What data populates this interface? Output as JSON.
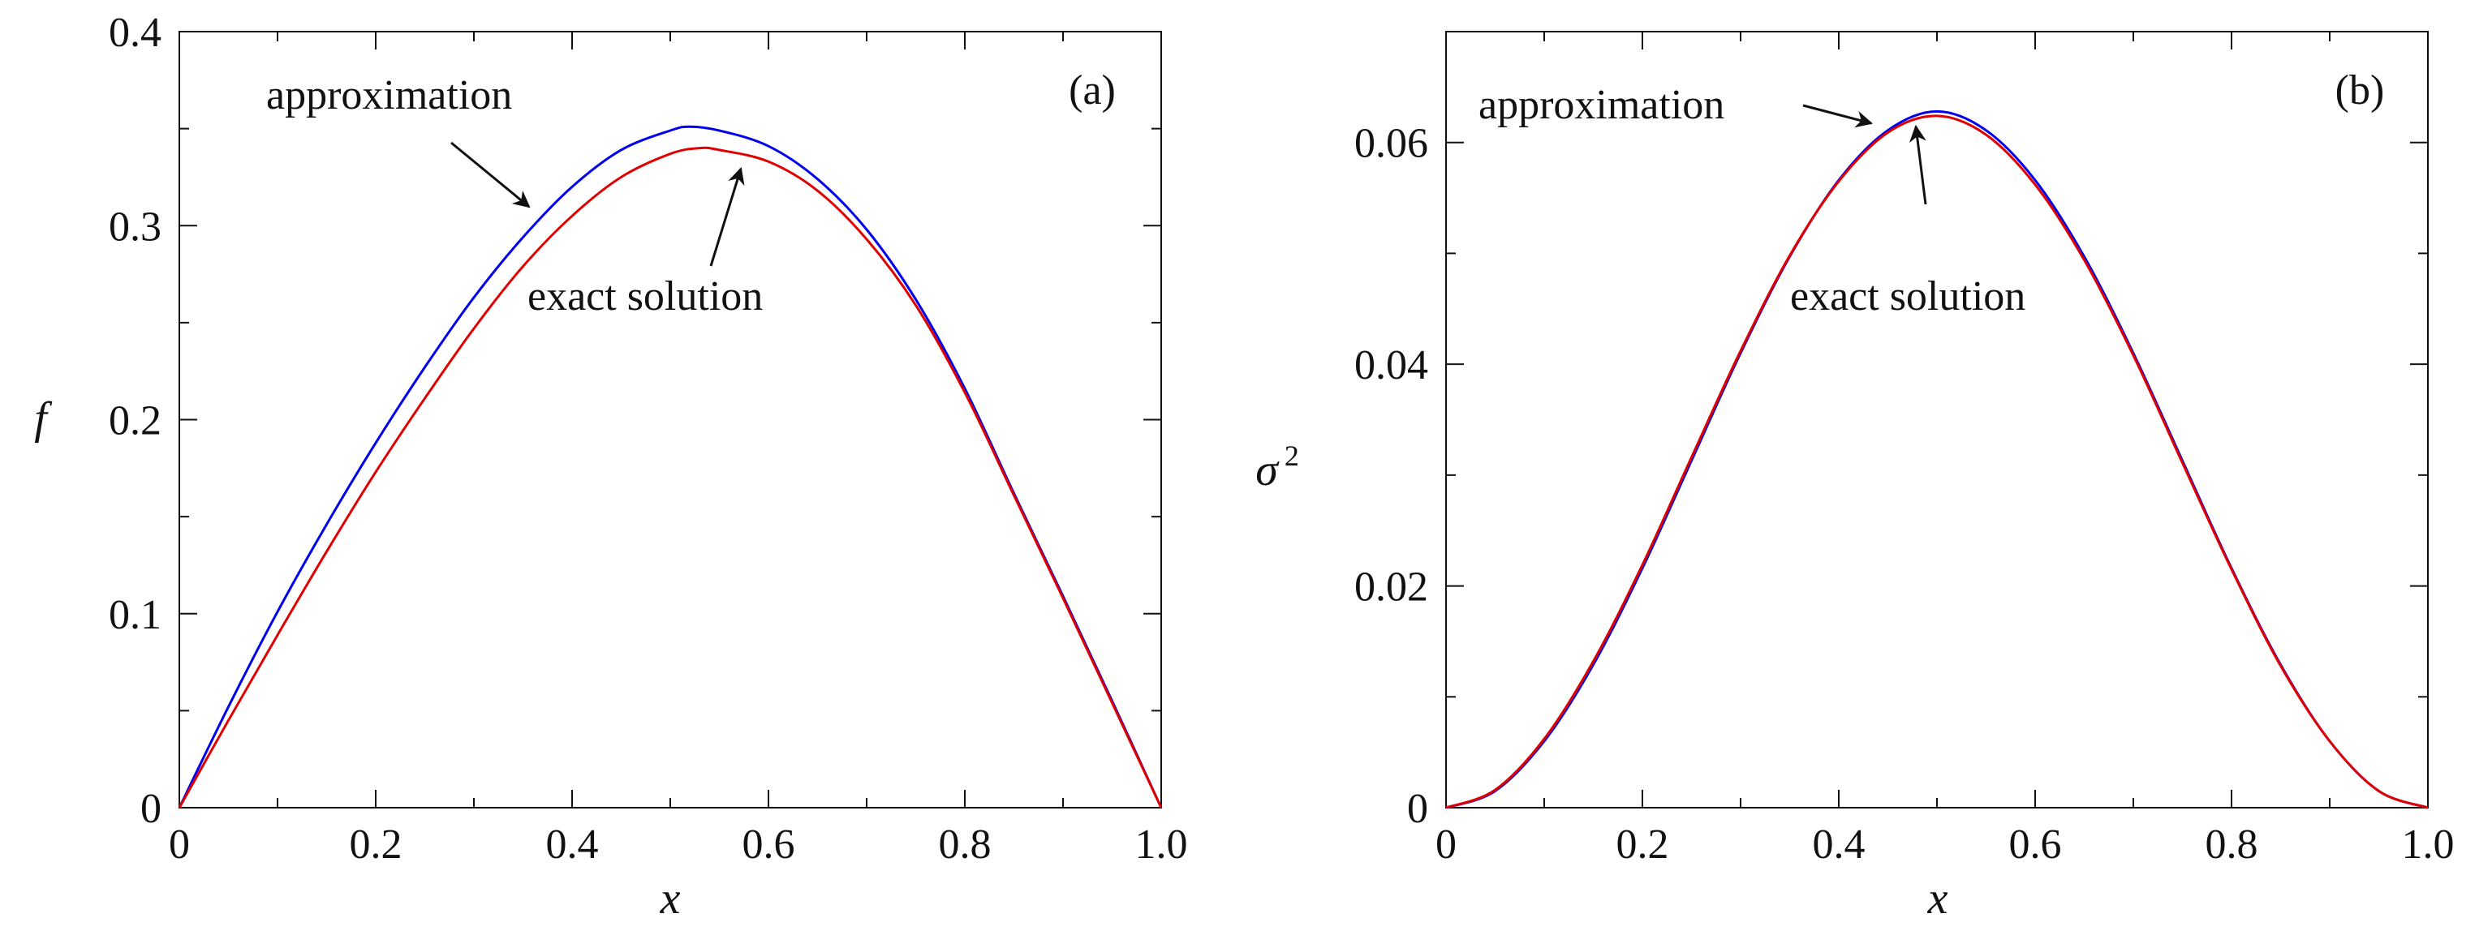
{
  "colors": {
    "approximation": "#0000ee",
    "exact": "#e00000",
    "axis": "#111111"
  },
  "chart_data": [
    {
      "type": "line",
      "panel_label": "(a)",
      "xlabel": "x",
      "ylabel": "f",
      "xlim": [
        0,
        1.0
      ],
      "ylim": [
        0,
        0.4
      ],
      "xticks": [
        "0",
        "0.2",
        "0.4",
        "0.6",
        "0.8",
        "1.0"
      ],
      "yticks": [
        "0",
        "0.1",
        "0.2",
        "0.3",
        "0.4"
      ],
      "grid": false,
      "annotations": [
        {
          "text": "approximation",
          "series": "approximation"
        },
        {
          "text": "exact solution",
          "series": "exact"
        }
      ],
      "series": [
        {
          "color_key": "approximation",
          "x": [
            0,
            0.05,
            0.1,
            0.15,
            0.2,
            0.25,
            0.3,
            0.35,
            0.4,
            0.45,
            0.5,
            0.52,
            0.55,
            0.6,
            0.65,
            0.7,
            0.75,
            0.8,
            0.85,
            0.9,
            0.95,
            1.0
          ],
          "y": [
            0,
            0.052,
            0.101,
            0.146,
            0.188,
            0.227,
            0.263,
            0.294,
            0.32,
            0.339,
            0.349,
            0.351,
            0.349,
            0.341,
            0.324,
            0.298,
            0.262,
            0.216,
            0.162,
            0.109,
            0.055,
            0
          ]
        },
        {
          "color_key": "exact",
          "x": [
            0,
            0.05,
            0.1,
            0.15,
            0.2,
            0.25,
            0.3,
            0.35,
            0.4,
            0.45,
            0.5,
            0.53,
            0.55,
            0.6,
            0.65,
            0.7,
            0.75,
            0.8,
            0.85,
            0.9,
            0.95,
            1.0
          ],
          "y": [
            0,
            0.045,
            0.089,
            0.132,
            0.173,
            0.211,
            0.247,
            0.279,
            0.305,
            0.325,
            0.337,
            0.34,
            0.339,
            0.333,
            0.318,
            0.293,
            0.259,
            0.214,
            0.161,
            0.108,
            0.054,
            0
          ]
        }
      ]
    },
    {
      "type": "line",
      "panel_label": "(b)",
      "xlabel": "x",
      "ylabel": "σ",
      "ylabel_sup": "2",
      "xlim": [
        0,
        1.0
      ],
      "ylim": [
        0,
        0.07
      ],
      "xticks": [
        "0",
        "0.2",
        "0.4",
        "0.6",
        "0.8",
        "1.0"
      ],
      "yticks": [
        "0",
        "0.02",
        "0.04",
        "0.06"
      ],
      "grid": false,
      "annotations": [
        {
          "text": "approximation",
          "series": "approximation"
        },
        {
          "text": "exact solution",
          "series": "exact"
        }
      ],
      "series": [
        {
          "color_key": "approximation",
          "x": [
            0,
            0.05,
            0.1,
            0.15,
            0.2,
            0.25,
            0.3,
            0.35,
            0.4,
            0.45,
            0.5,
            0.55,
            0.6,
            0.65,
            0.7,
            0.75,
            0.8,
            0.85,
            0.9,
            0.95,
            1.0
          ],
          "y": [
            0,
            0.0015,
            0.006,
            0.0129,
            0.0216,
            0.0313,
            0.041,
            0.0497,
            0.0566,
            0.0611,
            0.0628,
            0.0611,
            0.0566,
            0.0497,
            0.041,
            0.0313,
            0.0216,
            0.0129,
            0.006,
            0.0015,
            0
          ]
        },
        {
          "color_key": "exact",
          "x": [
            0,
            0.05,
            0.1,
            0.15,
            0.2,
            0.25,
            0.3,
            0.35,
            0.4,
            0.45,
            0.5,
            0.55,
            0.6,
            0.65,
            0.7,
            0.75,
            0.8,
            0.85,
            0.9,
            0.95,
            1.0
          ],
          "y": [
            0,
            0.0016,
            0.0062,
            0.0132,
            0.0219,
            0.0316,
            0.0412,
            0.0498,
            0.0565,
            0.0609,
            0.0624,
            0.0607,
            0.0562,
            0.0494,
            0.0408,
            0.0311,
            0.0215,
            0.0128,
            0.006,
            0.0015,
            0
          ]
        }
      ]
    }
  ]
}
